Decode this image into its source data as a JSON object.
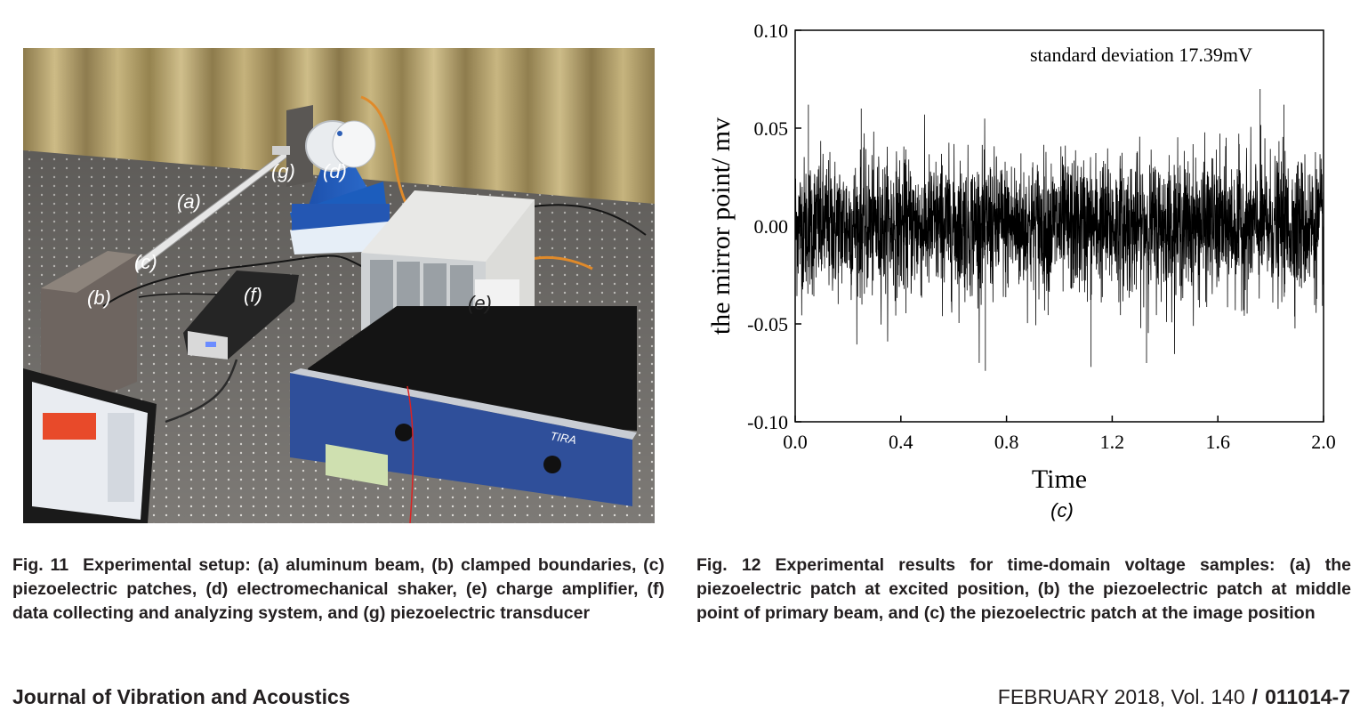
{
  "figure11": {
    "labels": {
      "a": "(a)",
      "b": "(b)",
      "c": "(c)",
      "d": "(d)",
      "e": "(e)",
      "f": "(f)",
      "g": "(g)"
    },
    "equipment_text": {
      "amplifier_brand": "TIRA"
    },
    "caption": {
      "number": "Fig. 11",
      "text": "Experimental setup: (a) aluminum beam, (b) clamped boundaries, (c) piezoelectric patches, (d) electromechanical shaker, (e) charge amplifier, (f) data collecting and analyzing system, and (g) piezoelectric transducer"
    }
  },
  "figure12": {
    "caption": {
      "number": "Fig. 12",
      "text": "Experimental results for time-domain voltage samples: (a) the piezoelectric patch at excited position, (b) the piezoelectric patch at middle point of primary beam, and (c) the piezoelectric patch at the image position"
    },
    "panel_label": "(c)"
  },
  "chart_data": {
    "type": "line",
    "title": "",
    "annotation": "standard deviation 17.39mV",
    "xlabel": "Time",
    "ylabel": "the mirror point/ mv",
    "xlim": [
      0.0,
      2.0
    ],
    "ylim": [
      -0.1,
      0.1
    ],
    "xticks": [
      "0.0",
      "0.4",
      "0.8",
      "1.2",
      "1.6",
      "2.0"
    ],
    "yticks": [
      "0.10",
      "0.05",
      "0.00",
      "-0.05",
      "-0.10"
    ],
    "grid": false,
    "series": [
      {
        "color": "#000000",
        "std": 0.01739,
        "envelope_peaks": [
          {
            "x": 0.05,
            "y": 0.062
          },
          {
            "x": 0.25,
            "y": 0.06
          },
          {
            "x": 0.72,
            "y": -0.074
          },
          {
            "x": 1.12,
            "y": -0.072
          },
          {
            "x": 1.33,
            "y": -0.07
          },
          {
            "x": 1.76,
            "y": 0.07
          },
          {
            "x": 1.85,
            "y": 0.062
          }
        ]
      }
    ]
  },
  "footer": {
    "journal": "Journal of Vibration and Acoustics",
    "issue": "FEBRUARY 2018, Vol. 140",
    "separator": "/",
    "article": "011014-7"
  }
}
